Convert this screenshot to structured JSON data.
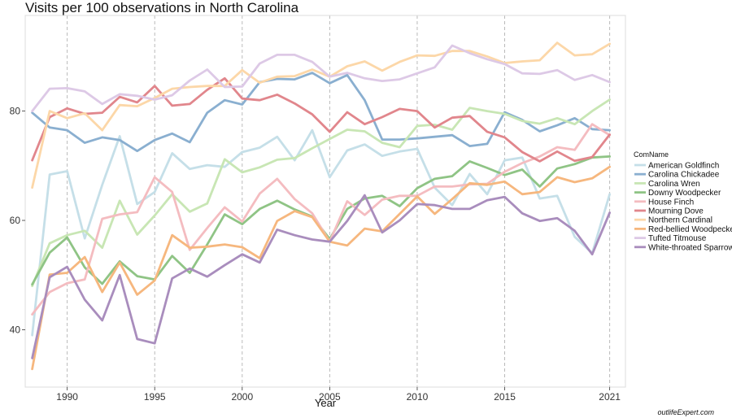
{
  "chart_data": {
    "type": "line",
    "title": "Visits per 100 observations in North Carolina",
    "xlabel": "Year",
    "ylabel": "",
    "xlim": [
      1987.6,
      2021.9
    ],
    "ylim": [
      29.5,
      97.5
    ],
    "x_ticks": [
      1990,
      1995,
      2000,
      2005,
      2010,
      2015,
      2021
    ],
    "y_ticks": [
      40,
      60,
      80
    ],
    "vertical_grid_dashed": true,
    "legend_title": "ComName",
    "legend_position": "right",
    "x": [
      1988,
      1989,
      1990,
      1991,
      1992,
      1993,
      1994,
      1995,
      1996,
      1997,
      1998,
      1999,
      2000,
      2001,
      2002,
      2003,
      2004,
      2005,
      2006,
      2007,
      2008,
      2009,
      2010,
      2011,
      2012,
      2013,
      2014,
      2015,
      2016,
      2017,
      2018,
      2019,
      2020,
      2021
    ],
    "series": [
      {
        "name": "American Goldfinch",
        "color": "#c5dfe8",
        "values": [
          39.0,
          68.4,
          69.0,
          56.7,
          66.5,
          75.4,
          63.0,
          65.2,
          72.3,
          69.4,
          70.1,
          69.8,
          72.5,
          73.3,
          75.3,
          71.0,
          76.5,
          67.9,
          72.8,
          73.9,
          71.8,
          72.6,
          73.1,
          66.0,
          62.8,
          68.5,
          64.8,
          71.0,
          71.5,
          64.0,
          64.5,
          57.0,
          54.0,
          64.8
        ]
      },
      {
        "name": "Carolina Chickadee",
        "color": "#8aafd0",
        "values": [
          79.7,
          77.0,
          76.5,
          74.2,
          75.2,
          74.7,
          72.7,
          74.7,
          75.9,
          74.3,
          79.7,
          82.0,
          81.2,
          85.3,
          85.9,
          85.8,
          87.0,
          85.1,
          86.6,
          82.0,
          74.8,
          74.8,
          75.0,
          75.3,
          75.6,
          73.6,
          74.0,
          79.8,
          78.4,
          76.3,
          77.4,
          78.7,
          76.7,
          76.5
        ]
      },
      {
        "name": "Carolina Wren",
        "color": "#c8e6b4",
        "values": [
          48.0,
          55.8,
          57.3,
          58.1,
          55.0,
          63.6,
          57.4,
          60.9,
          64.8,
          61.6,
          63.1,
          71.2,
          68.8,
          69.7,
          71.1,
          71.4,
          73.2,
          74.9,
          76.6,
          76.3,
          74.2,
          73.4,
          77.3,
          77.5,
          76.6,
          80.6,
          80.0,
          79.5,
          78.2,
          77.7,
          78.7,
          77.6,
          80.0,
          82.1
        ]
      },
      {
        "name": "Downy Woodpecker",
        "color": "#8fc485",
        "values": [
          48.3,
          54.1,
          56.9,
          51.4,
          48.4,
          52.5,
          49.8,
          49.2,
          53.5,
          50.4,
          55.6,
          61.1,
          59.3,
          62.1,
          63.6,
          62.0,
          60.7,
          56.6,
          62.1,
          64.0,
          64.5,
          62.6,
          65.9,
          67.6,
          68.1,
          70.8,
          69.6,
          68.3,
          69.3,
          66.2,
          69.5,
          70.3,
          71.5,
          71.7
        ]
      },
      {
        "name": "House Finch",
        "color": "#f4bcc0",
        "values": [
          42.8,
          46.9,
          48.5,
          49.2,
          60.3,
          61.1,
          61.5,
          67.9,
          65.2,
          54.6,
          58.6,
          62.4,
          59.8,
          64.9,
          67.6,
          63.9,
          61.3,
          56.1,
          63.5,
          61.0,
          63.8,
          64.5,
          64.5,
          66.2,
          66.2,
          66.6,
          66.7,
          68.9,
          70.5,
          71.7,
          73.4,
          72.9,
          77.6,
          75.6
        ]
      },
      {
        "name": "Mourning Dove",
        "color": "#e1868c",
        "values": [
          71.0,
          78.9,
          80.5,
          79.5,
          79.7,
          82.6,
          81.6,
          84.6,
          81.0,
          81.3,
          83.9,
          86.0,
          82.3,
          82.0,
          83.0,
          81.4,
          79.4,
          76.2,
          79.8,
          77.6,
          78.9,
          80.4,
          80.0,
          77.0,
          78.8,
          79.1,
          76.2,
          75.2,
          72.5,
          70.8,
          72.6,
          70.9,
          71.6,
          75.7
        ]
      },
      {
        "name": "Northern Cardinal",
        "color": "#fcd7a8",
        "values": [
          66.0,
          80.0,
          78.7,
          79.6,
          76.5,
          81.1,
          80.9,
          82.4,
          84.1,
          84.4,
          84.6,
          84.6,
          87.5,
          85.2,
          86.3,
          86.4,
          87.6,
          86.3,
          88.2,
          89.1,
          87.4,
          89.0,
          90.2,
          90.1,
          91.0,
          91.0,
          90.0,
          88.8,
          89.1,
          89.3,
          92.5,
          90.2,
          90.4,
          92.3
        ]
      },
      {
        "name": "Red-bellied Woodpecker",
        "color": "#f6b77e",
        "values": [
          32.8,
          50.1,
          50.4,
          53.3,
          46.9,
          52.3,
          46.4,
          49.0,
          57.3,
          55.0,
          55.2,
          55.6,
          55.1,
          53.1,
          59.9,
          61.7,
          60.6,
          56.1,
          55.4,
          58.5,
          58.0,
          61.2,
          64.4,
          61.2,
          63.9,
          66.8,
          66.5,
          67.1,
          64.8,
          65.2,
          67.9,
          67.0,
          67.7,
          69.8
        ]
      },
      {
        "name": "Tufted Titmouse",
        "color": "#ddc9e6",
        "values": [
          80.0,
          84.1,
          84.2,
          83.6,
          81.3,
          83.1,
          82.8,
          82.1,
          82.9,
          85.6,
          87.6,
          84.4,
          84.5,
          88.7,
          90.3,
          90.3,
          89.0,
          86.3,
          87.0,
          86.0,
          85.5,
          85.8,
          86.9,
          88.0,
          92.0,
          90.6,
          89.5,
          88.6,
          86.9,
          86.8,
          87.5,
          85.7,
          86.6,
          85.3
        ]
      },
      {
        "name": "White-throated Sparrow",
        "color": "#a98dbd",
        "values": [
          34.8,
          49.6,
          51.5,
          45.5,
          41.7,
          50.0,
          38.3,
          37.5,
          49.4,
          51.2,
          49.7,
          51.8,
          53.8,
          52.3,
          58.3,
          57.3,
          56.5,
          56.1,
          59.9,
          64.6,
          57.8,
          60.0,
          63.0,
          62.8,
          62.1,
          62.1,
          63.7,
          64.3,
          61.3,
          59.9,
          60.4,
          58.1,
          53.8,
          61.4
        ]
      }
    ]
  },
  "watermark": "outlifeExpert.com"
}
